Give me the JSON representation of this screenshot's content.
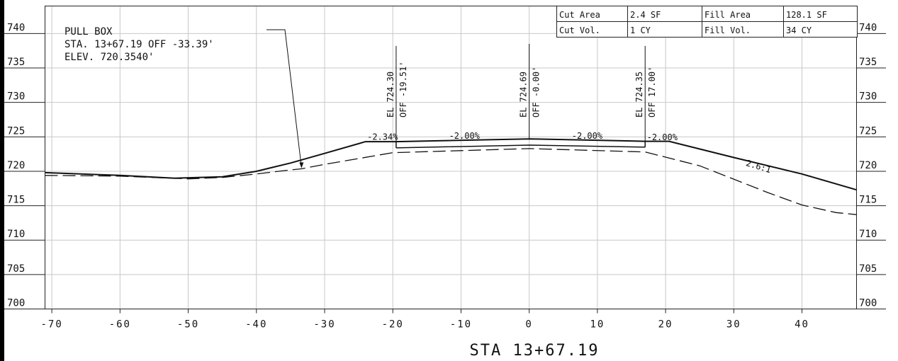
{
  "station_label": "STA 13+67.19",
  "summary": {
    "cut_area_label": "Cut Area",
    "cut_area_value": "2.4 SF",
    "fill_area_label": "Fill Area",
    "fill_area_value": "128.1 SF",
    "cut_vol_label": "Cut Vol.",
    "cut_vol_value": "1 CY",
    "fill_vol_label": "Fill Vol.",
    "fill_vol_value": "34 CY"
  },
  "callout": {
    "line1": "PULL BOX",
    "line2": "STA. 13+67.19 OFF -33.39'",
    "line3": "ELEV. 720.3540'",
    "offset": -33.39,
    "elev": 720.354
  },
  "chart_data": {
    "type": "line",
    "xlim": [
      -71,
      48
    ],
    "ylim": [
      700,
      744
    ],
    "x_ticks": [
      -70,
      -60,
      -50,
      -40,
      -30,
      -20,
      -10,
      0,
      10,
      20,
      30,
      40
    ],
    "x_tick_labels": [
      "-70",
      "-60",
      "-50",
      "-40",
      "-30",
      "-20",
      "-10",
      "0",
      "10",
      "20",
      "30",
      "40"
    ],
    "y_ticks": [
      700,
      705,
      710,
      715,
      720,
      725,
      730,
      735,
      740
    ],
    "y_tick_labels": [
      "700",
      "705",
      "710",
      "715",
      "720",
      "725",
      "730",
      "735",
      "740"
    ],
    "grid": true,
    "series": [
      {
        "style": "solid",
        "x": [
          -71,
          -60,
          -52,
          -45,
          -40,
          -35,
          -30,
          -24,
          -19.51,
          0,
          17,
          20.5,
          30,
          40,
          48
        ],
        "y": [
          719.8,
          719.4,
          719.0,
          719.2,
          720.0,
          721.2,
          722.6,
          724.3,
          724.3,
          724.7,
          724.35,
          724.35,
          722.0,
          719.6,
          717.3
        ]
      },
      {
        "style": "dashed",
        "x": [
          -71,
          -60,
          -50,
          -45,
          -40,
          -35,
          -33.39,
          -30,
          -20,
          0,
          17,
          25,
          35,
          40,
          45,
          48
        ],
        "y": [
          719.4,
          719.3,
          718.9,
          719.1,
          719.6,
          720.2,
          720.35,
          721.0,
          722.7,
          723.3,
          722.8,
          720.8,
          716.9,
          715.1,
          714.0,
          713.7
        ]
      },
      {
        "style": "pavement",
        "x": [
          -19.51,
          0,
          17
        ],
        "y": [
          723.4,
          723.8,
          723.5
        ]
      }
    ],
    "elevation_labels": [
      {
        "offset": -19.51,
        "el_text": "EL 724.30",
        "off_text": "OFF -19.51'",
        "top": 738.2
      },
      {
        "offset": 0.0,
        "el_text": "EL 724.69",
        "off_text": "OFF -0.00'",
        "top": 738.5
      },
      {
        "offset": 17.0,
        "el_text": "EL 724.35",
        "off_text": "OFF 17.00'",
        "top": 738.2
      }
    ],
    "slope_labels": [
      {
        "text": "-2.34%",
        "x": -21.5,
        "y": 724.55
      },
      {
        "text": "-2.00%",
        "x": -9.5,
        "y": 724.75
      },
      {
        "text": "-2.00%",
        "x": 8.5,
        "y": 724.75
      },
      {
        "text": "-2.00%",
        "x": 19.5,
        "y": 724.5
      },
      {
        "text": "2.6:1",
        "x": 33.5,
        "y": 720.3,
        "angle": 17
      }
    ]
  }
}
